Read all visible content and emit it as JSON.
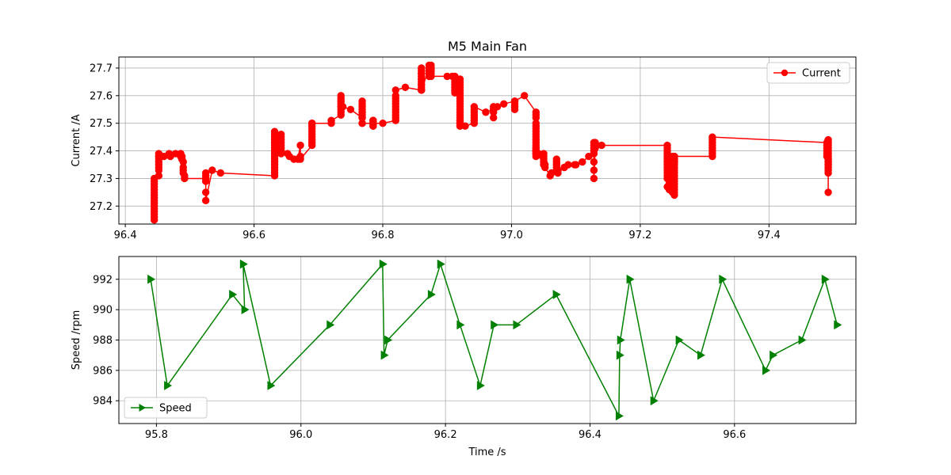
{
  "figure": {
    "title": "M5 Main Fan"
  },
  "chart_data": [
    {
      "type": "line",
      "title": "M5 Main Fan",
      "xlabel": "",
      "ylabel": "Current /A",
      "xlim": [
        96.39,
        97.535
      ],
      "ylim": [
        27.135,
        27.74
      ],
      "xticks": [
        96.4,
        96.6,
        96.8,
        97.0,
        97.2,
        97.4
      ],
      "xtick_labels": [
        "96.4",
        "96.6",
        "96.8",
        "97.0",
        "97.2",
        "97.4"
      ],
      "yticks": [
        27.2,
        27.3,
        27.4,
        27.5,
        27.6,
        27.7
      ],
      "ytick_labels": [
        "27.2",
        "27.3",
        "27.4",
        "27.5",
        "27.6",
        "27.7"
      ],
      "grid": true,
      "legend": "upper right",
      "series": [
        {
          "name": "Current",
          "color": "#ff0000",
          "marker": "circle",
          "x": [
            96.445,
            96.445,
            96.445,
            96.445,
            96.445,
            96.445,
            96.445,
            96.445,
            96.445,
            96.445,
            96.445,
            96.445,
            96.445,
            96.445,
            96.445,
            96.445,
            96.452,
            96.452,
            96.452,
            96.452,
            96.452,
            96.452,
            96.452,
            96.452,
            96.452,
            96.46,
            96.468,
            96.47,
            96.478,
            96.486,
            96.486,
            96.486,
            96.488,
            96.488,
            96.49,
            96.49,
            96.49,
            96.49,
            96.492,
            96.492,
            96.525,
            96.525,
            96.525,
            96.525,
            96.525,
            96.525,
            96.525,
            96.535,
            96.548,
            96.632,
            96.632,
            96.632,
            96.632,
            96.632,
            96.632,
            96.632,
            96.632,
            96.632,
            96.632,
            96.632,
            96.632,
            96.632,
            96.632,
            96.632,
            96.632,
            96.632,
            96.642,
            96.642,
            96.642,
            96.642,
            96.642,
            96.642,
            96.642,
            96.642,
            96.652,
            96.655,
            96.662,
            96.668,
            96.672,
            96.672,
            96.672,
            96.69,
            96.69,
            96.69,
            96.69,
            96.69,
            96.69,
            96.69,
            96.69,
            96.69,
            96.69,
            96.72,
            96.72,
            96.735,
            96.735,
            96.735,
            96.735,
            96.735,
            96.735,
            96.735,
            96.735,
            96.735,
            96.735,
            96.738,
            96.75,
            96.768,
            96.768,
            96.768,
            96.768,
            96.768,
            96.768,
            96.768,
            96.768,
            96.768,
            96.768,
            96.768,
            96.768,
            96.785,
            96.785,
            96.785,
            96.785,
            96.785,
            96.785,
            96.785,
            96.785,
            96.785,
            96.785,
            96.785,
            96.785,
            96.8,
            96.82,
            96.82,
            96.82,
            96.82,
            96.82,
            96.82,
            96.82,
            96.82,
            96.82,
            96.82,
            96.82,
            96.835,
            96.86,
            96.86,
            96.86,
            96.86,
            96.86,
            96.86,
            96.86,
            96.86,
            96.86,
            96.86,
            96.86,
            96.86,
            96.86,
            96.86,
            96.872,
            96.872,
            96.872,
            96.872,
            96.872,
            96.872,
            96.872,
            96.872,
            96.872,
            96.875,
            96.875,
            96.875,
            96.875,
            96.875,
            96.875,
            96.875,
            96.9,
            96.908,
            96.912,
            96.912,
            96.912,
            96.912,
            96.912,
            96.912,
            96.912,
            96.912,
            96.912,
            96.912,
            96.912,
            96.92,
            96.92,
            96.92,
            96.92,
            96.92,
            96.92,
            96.92,
            96.92,
            96.92,
            96.92,
            96.92,
            96.92,
            96.92,
            96.92,
            96.92,
            96.92,
            96.92,
            96.92,
            96.92,
            96.92,
            96.92,
            96.92,
            96.928,
            96.942,
            96.942,
            96.942,
            96.942,
            96.942,
            96.942,
            96.942,
            96.96,
            96.972,
            96.972,
            96.972,
            96.972,
            96.972,
            96.978,
            96.988,
            97.005,
            97.005,
            97.005,
            97.005,
            97.005,
            97.005,
            97.02,
            97.038,
            97.038,
            97.038,
            97.038,
            97.038,
            97.038,
            97.038,
            97.038,
            97.038,
            97.038,
            97.038,
            97.038,
            97.038,
            97.038,
            97.038,
            97.038,
            97.038,
            97.038,
            97.038,
            97.038,
            97.042,
            97.048,
            97.05,
            97.05,
            97.05,
            97.05,
            97.05,
            97.05,
            97.052,
            97.052,
            97.06,
            97.062,
            97.07,
            97.07,
            97.07,
            97.07,
            97.07,
            97.07,
            97.07,
            97.07,
            97.072,
            97.072,
            97.072,
            97.082,
            97.088,
            97.098,
            97.1,
            97.11,
            97.12,
            97.128,
            97.128,
            97.128,
            97.128,
            97.128,
            97.128,
            97.128,
            97.128,
            97.13,
            97.13,
            97.13,
            97.13,
            97.14,
            97.242,
            97.242,
            97.242,
            97.242,
            97.242,
            97.242,
            97.242,
            97.242,
            97.242,
            97.242,
            97.242,
            97.242,
            97.242,
            97.242,
            97.245,
            97.245,
            97.245,
            97.245,
            97.245,
            97.245,
            97.245,
            97.245,
            97.245,
            97.245,
            97.245,
            97.245,
            97.245,
            97.245,
            97.245,
            97.25,
            97.25,
            97.25,
            97.25,
            97.25,
            97.25,
            97.25,
            97.25,
            97.25,
            97.25,
            97.25,
            97.25,
            97.25,
            97.25,
            97.253,
            97.253,
            97.253,
            97.253,
            97.253,
            97.253,
            97.253,
            97.253,
            97.253,
            97.253,
            97.253,
            97.253,
            97.253,
            97.253,
            97.253,
            97.253,
            97.253,
            97.253,
            97.312,
            97.312,
            97.312,
            97.312,
            97.312,
            97.312,
            97.312,
            97.312,
            97.49,
            97.49,
            97.49,
            97.49,
            97.49,
            97.49,
            97.492,
            97.492,
            97.492,
            97.492,
            97.492,
            97.492,
            97.492,
            97.492,
            97.492,
            97.492,
            97.492,
            97.492,
            97.492,
            97.492,
            97.492,
            97.492,
            97.492,
            97.492,
            97.492
          ],
          "y": [
            27.15,
            27.16,
            27.17,
            27.18,
            27.19,
            27.2,
            27.21,
            27.22,
            27.23,
            27.24,
            27.25,
            27.26,
            27.27,
            27.28,
            27.29,
            27.3,
            27.31,
            27.33,
            27.34,
            27.35,
            27.36,
            27.37,
            27.38,
            27.39,
            27.38,
            27.38,
            27.39,
            27.38,
            27.39,
            27.39,
            27.38,
            27.39,
            27.38,
            27.37,
            27.36,
            27.34,
            27.33,
            27.32,
            27.31,
            27.3,
            27.3,
            27.29,
            27.3,
            27.31,
            27.32,
            27.25,
            27.22,
            27.33,
            27.32,
            27.31,
            27.32,
            27.33,
            27.34,
            27.35,
            27.36,
            27.37,
            27.38,
            27.39,
            27.4,
            27.41,
            27.42,
            27.43,
            27.44,
            27.45,
            27.46,
            27.47,
            27.46,
            27.45,
            27.44,
            27.43,
            27.42,
            27.41,
            27.4,
            27.39,
            27.39,
            27.38,
            27.37,
            27.37,
            27.42,
            27.38,
            27.37,
            27.42,
            27.43,
            27.44,
            27.45,
            27.46,
            27.47,
            27.48,
            27.49,
            27.5,
            27.5,
            27.5,
            27.51,
            27.53,
            27.54,
            27.55,
            27.56,
            27.57,
            27.58,
            27.59,
            27.6,
            27.58,
            27.56,
            27.56,
            27.55,
            27.52,
            27.53,
            27.54,
            27.55,
            27.56,
            27.57,
            27.58,
            27.56,
            27.54,
            27.52,
            27.5,
            27.5,
            27.5,
            27.51,
            27.5,
            27.49,
            27.5,
            27.51,
            27.5,
            27.51,
            27.5,
            27.49,
            27.5,
            27.5,
            27.5,
            27.51,
            27.52,
            27.53,
            27.54,
            27.55,
            27.56,
            27.57,
            27.58,
            27.59,
            27.6,
            27.62,
            27.63,
            27.62,
            27.63,
            27.64,
            27.65,
            27.66,
            27.67,
            27.68,
            27.69,
            27.7,
            27.68,
            27.66,
            27.64,
            27.62,
            27.62,
            27.7,
            27.71,
            27.7,
            27.69,
            27.68,
            27.67,
            27.68,
            27.69,
            27.7,
            27.71,
            27.7,
            27.69,
            27.7,
            27.69,
            27.68,
            27.67,
            27.67,
            27.67,
            27.67,
            27.66,
            27.65,
            27.64,
            27.63,
            27.62,
            27.61,
            27.62,
            27.63,
            27.64,
            27.65,
            27.66,
            27.65,
            27.64,
            27.63,
            27.62,
            27.61,
            27.6,
            27.59,
            27.58,
            27.57,
            27.56,
            27.55,
            27.54,
            27.53,
            27.52,
            27.51,
            27.5,
            27.49,
            27.5,
            27.51,
            27.5,
            27.49,
            27.49,
            27.5,
            27.51,
            27.52,
            27.53,
            27.54,
            27.55,
            27.56,
            27.54,
            27.55,
            27.56,
            27.55,
            27.54,
            27.52,
            27.56,
            27.57,
            27.58,
            27.57,
            27.56,
            27.55,
            27.56,
            27.58,
            27.6,
            27.54,
            27.53,
            27.52,
            27.5,
            27.49,
            27.48,
            27.47,
            27.46,
            27.45,
            27.44,
            27.43,
            27.42,
            27.41,
            27.4,
            27.39,
            27.4,
            27.41,
            27.4,
            27.39,
            27.38,
            27.39,
            27.38,
            27.39,
            27.38,
            27.37,
            27.36,
            27.35,
            27.36,
            27.35,
            27.34,
            27.31,
            27.32,
            27.33,
            27.34,
            27.35,
            27.36,
            27.37,
            27.36,
            27.35,
            27.34,
            27.33,
            27.32,
            27.32,
            27.34,
            27.35,
            27.35,
            27.35,
            27.36,
            27.38,
            27.39,
            27.4,
            27.41,
            27.42,
            27.43,
            27.36,
            27.33,
            27.3,
            27.41,
            27.42,
            27.43,
            27.42,
            27.42,
            27.42,
            27.41,
            27.4,
            27.39,
            27.38,
            27.37,
            27.36,
            27.35,
            27.34,
            27.33,
            27.32,
            27.31,
            27.3,
            27.27,
            27.26,
            27.28,
            27.29,
            27.31,
            27.33,
            27.34,
            27.35,
            27.36,
            27.37,
            27.38,
            27.33,
            27.3,
            27.29,
            27.28,
            27.3,
            27.25,
            27.26,
            27.27,
            27.28,
            27.29,
            27.3,
            27.31,
            27.32,
            27.33,
            27.34,
            27.35,
            27.36,
            27.37,
            27.38,
            27.24,
            27.25,
            27.26,
            27.27,
            27.28,
            27.29,
            27.3,
            27.31,
            27.32,
            27.33,
            27.34,
            27.35,
            27.36,
            27.37,
            27.38,
            27.37,
            27.36,
            27.38,
            27.38,
            27.39,
            27.4,
            27.41,
            27.42,
            27.43,
            27.44,
            27.45,
            27.43,
            27.42,
            27.41,
            27.4,
            27.39,
            27.38,
            27.37,
            27.36,
            27.35,
            27.34,
            27.33,
            27.32,
            27.33,
            27.34,
            27.35,
            27.36,
            27.25,
            27.37,
            27.38,
            27.39,
            27.4,
            27.41,
            27.42,
            27.43,
            27.44
          ],
          "tail_points_note": ""
        }
      ]
    },
    {
      "type": "line",
      "title": "",
      "xlabel": "Time /s",
      "ylabel": "Speed /rpm",
      "xlim": [
        95.748,
        96.768
      ],
      "ylim": [
        982.5,
        993.5
      ],
      "xticks": [
        95.8,
        96.0,
        96.2,
        96.4,
        96.6
      ],
      "xtick_labels": [
        "95.8",
        "96.0",
        "96.2",
        "96.4",
        "96.6"
      ],
      "yticks": [
        984,
        986,
        988,
        990,
        992
      ],
      "ytick_labels": [
        "984",
        "986",
        "988",
        "990",
        "992"
      ],
      "grid": true,
      "legend": "lower left",
      "series": [
        {
          "name": "Speed",
          "color": "#008000",
          "marker": "triangle-right",
          "x": [
            95.792,
            95.815,
            95.905,
            95.922,
            95.92,
            95.958,
            96.04,
            96.113,
            96.115,
            96.12,
            96.18,
            96.193,
            96.22,
            96.248,
            96.267,
            96.298,
            96.353,
            96.44,
            96.441,
            96.442,
            96.455,
            96.488,
            96.523,
            96.553,
            96.583,
            96.643,
            96.653,
            96.693,
            96.725,
            96.742
          ],
          "y": [
            992,
            985,
            991,
            990,
            993,
            985,
            989,
            993,
            987,
            988,
            991,
            993,
            989,
            985,
            989,
            989,
            991,
            983,
            987,
            988,
            992,
            984,
            988,
            987,
            992,
            986,
            987,
            988,
            992,
            989
          ]
        }
      ]
    }
  ]
}
